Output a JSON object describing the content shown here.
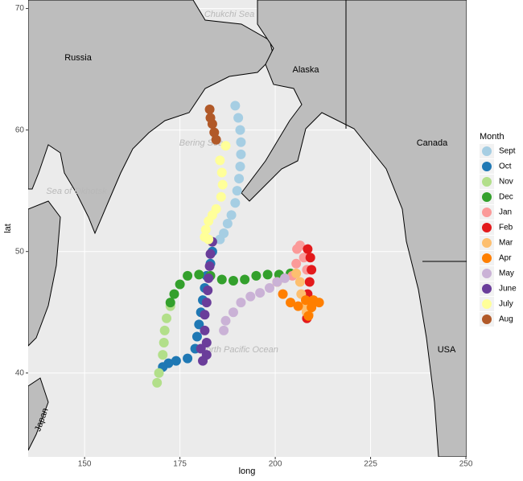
{
  "chart_data": {
    "type": "scatter",
    "x_label": "long",
    "y_label": "lat",
    "xlim": [
      135.2,
      250.2
    ],
    "ylim": [
      33.1,
      70.7
    ],
    "xticks": [
      150,
      175,
      200,
      225,
      250
    ],
    "yticks": [
      40,
      50,
      60,
      70
    ],
    "grid": true,
    "legend_title": "Month",
    "legend_position": "right",
    "map_labels": [
      "Russia",
      "Alaska",
      "Canada",
      "USA",
      "Japan",
      "Chukchi Sea",
      "Bering Sea",
      "Sea of Okhotsk",
      "North Pacific Ocean"
    ],
    "series": [
      {
        "name": "Sept",
        "color": "#a6cee3",
        "x": [
          189.5,
          190.3,
          190.8,
          191,
          191,
          190.8,
          190.5,
          190,
          189.5,
          188.5,
          187.5,
          186.5,
          185.5
        ],
        "values": [
          62,
          61,
          60,
          59,
          58,
          57,
          56,
          55,
          54,
          53,
          52.3,
          51.5,
          51
        ]
      },
      {
        "name": "Oct",
        "color": "#1f78b4",
        "x": [
          183.5,
          183,
          182,
          181.5,
          181,
          180.5,
          180,
          179.5,
          179,
          177,
          174,
          172,
          170.5
        ],
        "values": [
          50,
          49,
          48,
          47,
          46,
          45,
          44,
          43,
          42,
          41.2,
          41,
          40.8,
          40.5
        ]
      },
      {
        "name": "Nov",
        "color": "#b2df8a",
        "x": [
          169,
          169.5,
          170.5,
          170.8,
          171,
          171.5,
          172.5
        ],
        "values": [
          39.2,
          40,
          41.5,
          42.5,
          43.5,
          44.5,
          45.5
        ]
      },
      {
        "name": "Dec",
        "color": "#33a02c",
        "x": [
          172.5,
          173.5,
          175,
          177,
          180,
          183,
          186,
          189,
          192,
          195,
          198,
          201,
          204
        ],
        "values": [
          45.8,
          46.5,
          47.3,
          48,
          48.1,
          48,
          47.7,
          47.6,
          47.7,
          48,
          48.1,
          48.1,
          48.2
        ]
      },
      {
        "name": "Jan",
        "color": "#fb9a99",
        "x": [
          204.5,
          205.5,
          205.7,
          206.5,
          207.5,
          208.3
        ],
        "values": [
          48,
          49,
          50.2,
          50.5,
          49.5,
          48.5
        ]
      },
      {
        "name": "Feb",
        "color": "#e31a1c",
        "x": [
          208.5,
          209.2,
          209.5,
          209,
          208.5,
          208,
          208.3
        ],
        "values": [
          50.2,
          49.5,
          48.5,
          47.5,
          46.5,
          45.5,
          44.5
        ]
      },
      {
        "name": "Mar",
        "color": "#fdbf6f",
        "x": [
          205.5,
          206.5,
          206.8,
          207.5,
          208.2,
          208.8
        ],
        "values": [
          48.2,
          47.5,
          46.5,
          45.5,
          45,
          44.8
        ]
      },
      {
        "name": "Apr",
        "color": "#ff7f00",
        "x": [
          200.5,
          202,
          204,
          206,
          208,
          210,
          211.5,
          209.5,
          208.7
        ],
        "values": [
          47.5,
          46.5,
          45.8,
          45.5,
          46,
          46,
          45.8,
          45.4,
          44.7
        ]
      },
      {
        "name": "May",
        "color": "#cab2d6",
        "x": [
          186.5,
          187,
          189,
          191,
          193.5,
          196,
          198.5,
          200.5,
          202.5
        ],
        "values": [
          43.5,
          44.3,
          45,
          45.8,
          46.3,
          46.6,
          47,
          47.5,
          47.8
        ]
      },
      {
        "name": "June",
        "color": "#6a3d9a",
        "x": [
          183.5,
          183,
          182.8,
          182.5,
          182.3,
          182,
          181.5,
          181.5,
          182,
          182,
          181,
          180.5
        ],
        "values": [
          50.8,
          49.8,
          48.8,
          47.8,
          46.8,
          45.8,
          44.8,
          43.5,
          42.5,
          41.5,
          41,
          42
        ]
      },
      {
        "name": "July",
        "color": "#ffff99",
        "x": [
          185.5,
          186,
          186.2,
          185.8,
          184.5,
          183.5,
          182.5,
          181.8,
          181.5,
          182.5,
          187
        ],
        "values": [
          57.5,
          56.5,
          55.5,
          54.5,
          53.5,
          53,
          52.5,
          51.8,
          51.2,
          51,
          58.7
        ]
      },
      {
        "name": "Aug",
        "color": "#b15928",
        "x": [
          182.8,
          183,
          183.5,
          184,
          184.5
        ],
        "values": [
          61.7,
          61,
          60.5,
          59.8,
          59.2
        ]
      }
    ]
  }
}
